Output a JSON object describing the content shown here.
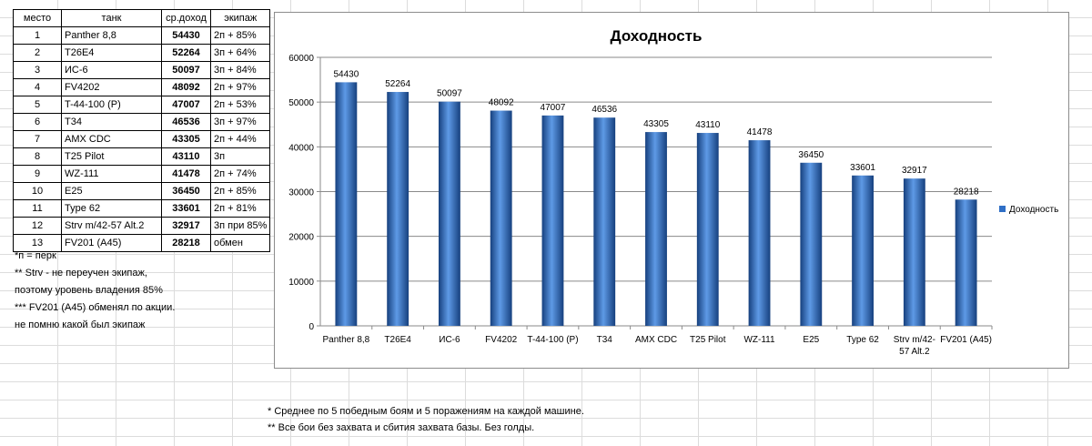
{
  "table": {
    "headers": {
      "rank": "место",
      "tank": "танк",
      "income": "ср.доход",
      "crew": "экипаж"
    },
    "rows": [
      {
        "rank": "1",
        "tank": "Panther 8,8",
        "income": "54430",
        "crew": "2п + 85%"
      },
      {
        "rank": "2",
        "tank": "T26E4",
        "income": "52264",
        "crew": "3п + 64%"
      },
      {
        "rank": "3",
        "tank": "ИС-6",
        "income": "50097",
        "crew": "3п + 84%"
      },
      {
        "rank": "4",
        "tank": "FV4202",
        "income": "48092",
        "crew": "2п + 97%"
      },
      {
        "rank": "5",
        "tank": "T-44-100 (Р)",
        "income": "47007",
        "crew": "2п + 53%"
      },
      {
        "rank": "6",
        "tank": "T34",
        "income": "46536",
        "crew": "3п + 97%"
      },
      {
        "rank": "7",
        "tank": "AMX CDC",
        "income": "43305",
        "crew": "2п + 44%"
      },
      {
        "rank": "8",
        "tank": "T25 Pilot",
        "income": "43110",
        "crew": "3п"
      },
      {
        "rank": "9",
        "tank": "WZ-111",
        "income": "41478",
        "crew": "2п + 74%"
      },
      {
        "rank": "10",
        "tank": "E25",
        "income": "36450",
        "crew": "2п + 85%"
      },
      {
        "rank": "11",
        "tank": "Type 62",
        "income": "33601",
        "crew": "2п + 81%"
      },
      {
        "rank": "12",
        "tank": "Strv m/42-57 Alt.2",
        "income": "32917",
        "crew": "3п при 85%"
      },
      {
        "rank": "13",
        "tank": "FV201 (A45)",
        "income": "28218",
        "crew": "обмен"
      }
    ]
  },
  "notes": [
    "*п = перк",
    "** Strv - не переучен экипаж,",
    "поэтому уровень владения 85%",
    "*** FV201 (A45) обменял по акции.",
    "не помню какой был экипаж"
  ],
  "bottom_notes": [
    "* Среднее по 5 победным боям и 5 поражениям на каждой машине.",
    "** Все бои без захвата и сбития захвата базы. Без голды."
  ],
  "colors": {
    "bar_dark": "#16407e",
    "bar_mid": "#2f6fc6",
    "bar_light": "#5e9ae6"
  },
  "chart_data": {
    "type": "bar",
    "title": "Доходность",
    "xlabel": "",
    "ylabel": "",
    "categories": [
      "Panther 8,8",
      "T26E4",
      "ИС-6",
      "FV4202",
      "T-44-100 (Р)",
      "T34",
      "AMX CDC",
      "T25 Pilot",
      "WZ-111",
      "E25",
      "Type 62",
      "Strv m/42-57 Alt.2",
      "FV201 (A45)"
    ],
    "category_labels": [
      [
        "Panther 8,8"
      ],
      [
        "T26E4"
      ],
      [
        "ИС-6"
      ],
      [
        "FV4202"
      ],
      [
        "T-44-100 (Р)"
      ],
      [
        "T34"
      ],
      [
        "AMX CDC"
      ],
      [
        "T25 Pilot"
      ],
      [
        "WZ-111"
      ],
      [
        "E25"
      ],
      [
        "Type 62"
      ],
      [
        "Strv m/42-",
        "57 Alt.2"
      ],
      [
        "FV201 (A45)"
      ]
    ],
    "series": [
      {
        "name": "Доходность",
        "values": [
          54430,
          52264,
          50097,
          48092,
          47007,
          46536,
          43305,
          43110,
          41478,
          36450,
          33601,
          32917,
          28218
        ]
      }
    ],
    "ylim": [
      0,
      60000
    ],
    "yticks": [
      "0",
      "10000",
      "20000",
      "30000",
      "40000",
      "50000",
      "60000"
    ],
    "grid": true,
    "legend": "right"
  }
}
